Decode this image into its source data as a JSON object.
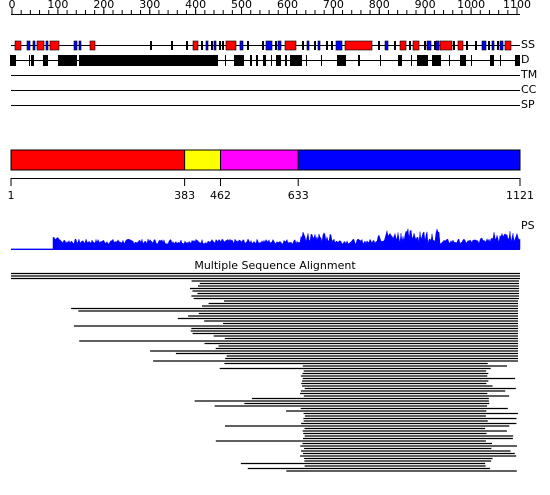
{
  "ruler": {
    "ticks": [
      0,
      100,
      200,
      300,
      400,
      500,
      600,
      700,
      800,
      900,
      1000,
      1100
    ]
  },
  "tracks": [
    "SS",
    "D",
    "TM",
    "CC",
    "SP"
  ],
  "domains": {
    "boundaries": [
      1,
      383,
      462,
      633,
      1121
    ],
    "colors": [
      "#ff0000",
      "#ffff00",
      "#ff00ff",
      "#0000ff"
    ]
  },
  "profile": {
    "label": "PS",
    "color": "#0000ff"
  },
  "alignment": {
    "title": "Multiple Sequence Alignment"
  }
}
